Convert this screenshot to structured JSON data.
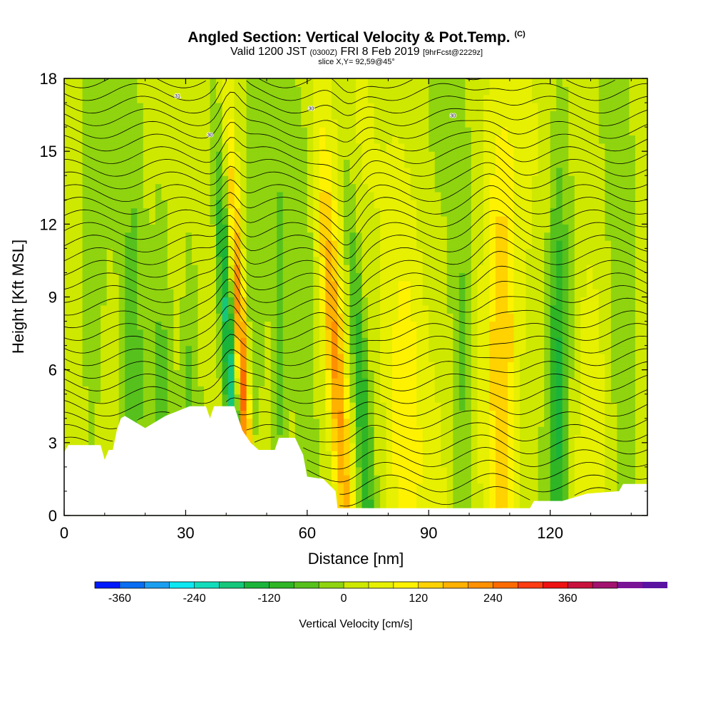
{
  "chart_data": {
    "type": "heatmap",
    "title": "Angled Section: Vertical Velocity & Pot.Temp.",
    "title_unit": "(C)",
    "subtitle_prefix": "Valid 1200 JST",
    "subtitle_utc": "(0300Z)",
    "subtitle_date": "FRI 8 Feb 2019",
    "subtitle_fcst": "[9hrFcst@2229z]",
    "slice_label": "slice X,Y= 92,59@45°",
    "xlabel": "Distance [nm]",
    "ylabel": "Height [Kft MSL]",
    "xlim": [
      0,
      144
    ],
    "ylim": [
      0,
      18
    ],
    "xticks": [
      0,
      30,
      60,
      90,
      120
    ],
    "yticks": [
      0,
      3,
      6,
      9,
      12,
      15,
      18
    ],
    "colorbar": {
      "label": "Vertical Velocity [cm/s]",
      "ticks": [
        -360,
        -240,
        -120,
        0,
        120,
        240,
        360
      ],
      "min": -400,
      "max": 440,
      "step": 40,
      "colors": [
        "#0019ff",
        "#0a6df2",
        "#1a9ef0",
        "#0ce7f2",
        "#11dcbb",
        "#16c77b",
        "#1bb43a",
        "#2fb526",
        "#56c11c",
        "#8fd40f",
        "#cfe800",
        "#e6f000",
        "#fff200",
        "#ffd200",
        "#ffb100",
        "#ff9000",
        "#ff6a00",
        "#ff3c12",
        "#ee1212",
        "#c8123c",
        "#a2126e",
        "#7a1296",
        "#5a12a0"
      ]
    },
    "velocity_features": [
      {
        "x": 7,
        "w": 3,
        "amp": -40
      },
      {
        "x": 17,
        "w": 3,
        "amp": -90
      },
      {
        "x": 24,
        "w": 2.5,
        "amp": -70
      },
      {
        "x": 31,
        "w": 2,
        "amp": -60
      },
      {
        "x": 40,
        "w": 1.8,
        "amp": -220,
        "tilt": -0.35
      },
      {
        "x": 43,
        "w": 1.5,
        "amp": 260,
        "tilt": -0.3
      },
      {
        "x": 47,
        "w": 2.5,
        "amp": -50
      },
      {
        "x": 53,
        "w": 2,
        "amp": -80
      },
      {
        "x": 59,
        "w": 3,
        "amp": -60
      },
      {
        "x": 66,
        "w": 2.5,
        "amp": 200,
        "tilt": -0.4
      },
      {
        "x": 72,
        "w": 2,
        "amp": -120,
        "tilt": -0.35
      },
      {
        "x": 84,
        "w": 5,
        "amp": 80
      },
      {
        "x": 98,
        "w": 2.5,
        "amp": -70
      },
      {
        "x": 108,
        "w": 4,
        "amp": 150
      },
      {
        "x": 122,
        "w": 2.5,
        "amp": -150
      },
      {
        "x": 130,
        "w": 3,
        "amp": 40
      },
      {
        "x": 138,
        "w": 3,
        "amp": -60
      }
    ],
    "terrain_profile": [
      [
        0,
        2.6
      ],
      [
        1,
        2.9
      ],
      [
        9,
        2.9
      ],
      [
        10,
        2.3
      ],
      [
        11,
        2.7
      ],
      [
        12,
        2.7
      ],
      [
        13,
        3.5
      ],
      [
        14,
        4.0
      ],
      [
        15,
        4.1
      ],
      [
        20,
        3.6
      ],
      [
        25,
        4.1
      ],
      [
        31,
        4.5
      ],
      [
        35,
        4.5
      ],
      [
        36,
        4.0
      ],
      [
        37,
        4.5
      ],
      [
        42,
        4.5
      ],
      [
        44,
        3.5
      ],
      [
        46,
        3.0
      ],
      [
        48,
        2.7
      ],
      [
        52,
        2.7
      ],
      [
        53,
        3.2
      ],
      [
        57,
        3.2
      ],
      [
        59,
        2.5
      ],
      [
        60,
        1.6
      ],
      [
        64,
        1.5
      ],
      [
        67,
        1.0
      ],
      [
        67.5,
        0.3
      ],
      [
        115,
        0.3
      ],
      [
        116,
        0.6
      ],
      [
        123,
        0.6
      ],
      [
        129,
        0.9
      ],
      [
        137,
        1.0
      ],
      [
        138,
        1.3
      ],
      [
        144,
        1.3
      ]
    ],
    "contour_labels": [
      {
        "x": 28,
        "y": 17.2,
        "text": "31"
      },
      {
        "x": 36,
        "y": 15.6,
        "text": "30"
      },
      {
        "x": 61,
        "y": 16.7,
        "text": "30"
      },
      {
        "x": 96,
        "y": 16.4,
        "text": "30"
      }
    ]
  }
}
